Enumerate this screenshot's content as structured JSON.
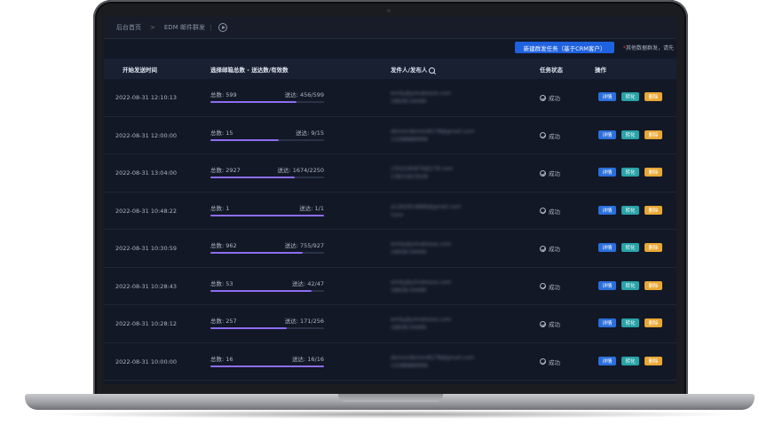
{
  "breadcrumb": {
    "home": "后台首页",
    "separator": ">",
    "current": "EDM 邮件群发",
    "divider": "|"
  },
  "toolbar": {
    "new_task_label": "新建群发任务（基于CRM客户）",
    "note_star": "*",
    "note_text": "其他数据群发，请先"
  },
  "table": {
    "headers": {
      "time": "开始发送时间",
      "totals": "选择邮箱总数 - 送达数/有效数",
      "sender": "发件人/发布人",
      "status": "任务状态",
      "ops": "操作"
    },
    "op_labels": {
      "detail": "详情",
      "convert": "转化",
      "delete": "删除"
    },
    "rows": [
      {
        "time": "2022-08-31 12:10:13",
        "total": "总数: 599",
        "reach": "送达: 456/599",
        "progress": 0.76,
        "sender1": "emily@yimatoozo.com",
        "sender2": "18928-04490",
        "status": "成功"
      },
      {
        "time": "2022-08-31 12:00:00",
        "total": "总数: 15",
        "reach": "送达: 9/15",
        "progress": 0.6,
        "sender1": "demondemon8178@gmail.com",
        "sender2": "13288889996",
        "status": "成功"
      },
      {
        "time": "2022-08-31 13:04:00",
        "total": "总数: 2927",
        "reach": "送达: 1674/2250",
        "progress": 0.74,
        "sender1": "1302185879@179.com",
        "sender2": "13831823529",
        "status": "成功"
      },
      {
        "time": "2022-08-31 10:48:22",
        "total": "总数: 1",
        "reach": "送达: 1/1",
        "progress": 1.0,
        "sender1": "a1262914889@gmail.com",
        "sender2": "Cora",
        "status": "成功"
      },
      {
        "time": "2022-08-31 10:30:59",
        "total": "总数: 962",
        "reach": "送达: 755/927",
        "progress": 0.81,
        "sender1": "emily@yimatoozo.com",
        "sender2": "18928-04490",
        "status": "成功"
      },
      {
        "time": "2022-08-31 10:28:43",
        "total": "总数: 53",
        "reach": "送达: 42/47",
        "progress": 0.89,
        "sender1": "emily@yimatoozo.com",
        "sender2": "18928-04490",
        "status": "成功"
      },
      {
        "time": "2022-08-31 10:28:12",
        "total": "总数: 257",
        "reach": "送达: 171/256",
        "progress": 0.67,
        "sender1": "emily@yimatoozo.com",
        "sender2": "18928-04490",
        "status": "成功"
      },
      {
        "time": "2022-08-31 10:00:00",
        "total": "总数: 16",
        "reach": "送达: 16/16",
        "progress": 1.0,
        "sender1": "demondemon8178@gmail.com",
        "sender2": "13288889996",
        "status": "成功"
      }
    ]
  },
  "colors": {
    "primary": "#1f62e0",
    "progress": "#8e6cf0",
    "detail": "#2a6fdc",
    "convert": "#28a3a8",
    "delete": "#e8a734",
    "required": "#e0383e"
  }
}
